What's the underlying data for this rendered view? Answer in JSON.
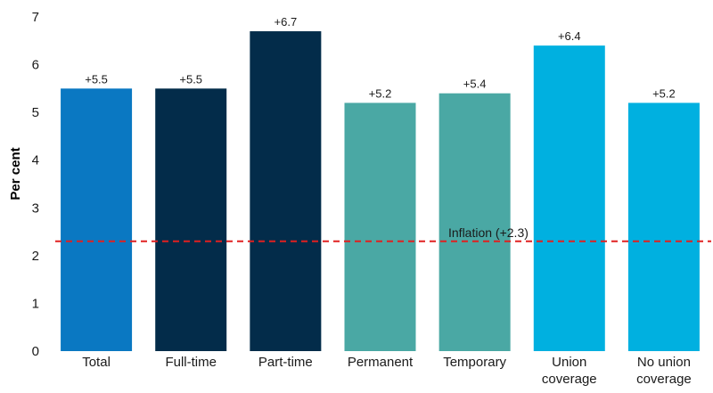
{
  "chart_data": {
    "type": "bar",
    "title": "",
    "xlabel": "",
    "ylabel": "Per cent",
    "ylim": [
      0,
      7
    ],
    "yticks": [
      0,
      1,
      2,
      3,
      4,
      5,
      6,
      7
    ],
    "grid": false,
    "categories": [
      [
        "Total"
      ],
      [
        "Full-time"
      ],
      [
        "Part-time"
      ],
      [
        "Permanent"
      ],
      [
        "Temporary"
      ],
      [
        "Union",
        "coverage"
      ],
      [
        "No union",
        "coverage"
      ]
    ],
    "values": [
      5.5,
      5.5,
      6.7,
      5.2,
      5.4,
      6.4,
      5.2
    ],
    "data_labels": [
      "+5.5",
      "+5.5",
      "+6.7",
      "+5.2",
      "+5.4",
      "+6.4",
      "+5.2"
    ],
    "bar_colors": [
      "#0a78c2",
      "#032c4a",
      "#032c4a",
      "#4aa8a4",
      "#4aa8a4",
      "#00b0e0",
      "#00b0e0"
    ],
    "reference_line": {
      "label": "Inflation (+2.3)",
      "value": 2.3,
      "color": "#e02020",
      "style": "dashed"
    }
  }
}
